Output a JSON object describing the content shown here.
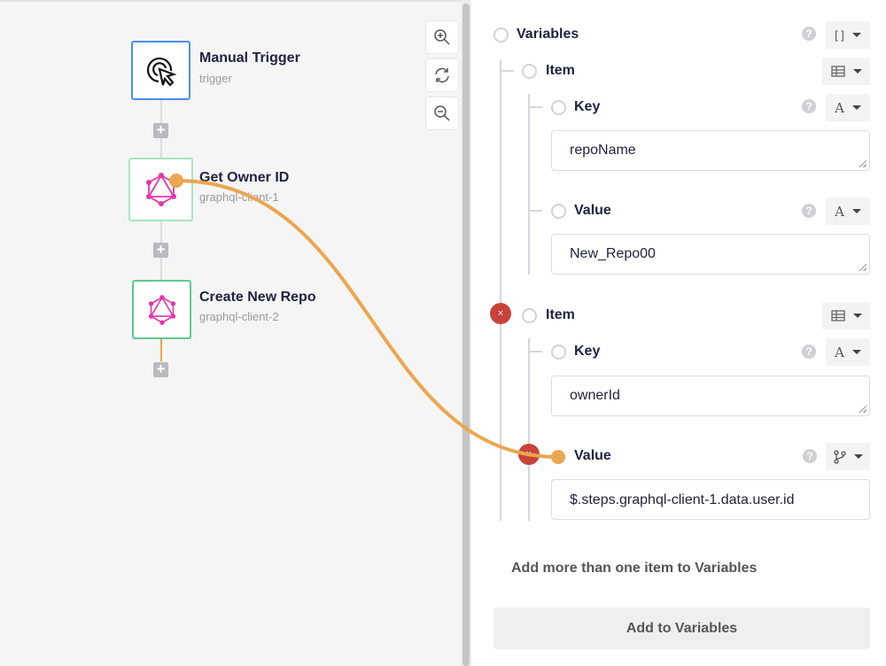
{
  "workflow": {
    "nodes": [
      {
        "title": "Manual Trigger",
        "subtitle": "trigger",
        "icon": "cursor-click-icon"
      },
      {
        "title": "Get Owner ID",
        "subtitle": "graphql-client-1",
        "icon": "graphql-icon"
      },
      {
        "title": "Create New Repo",
        "subtitle": "graphql-client-2",
        "icon": "graphql-icon"
      }
    ],
    "add_step_symbol": "+",
    "zoom_controls": [
      "zoom-in-icon",
      "refresh-icon",
      "zoom-out-icon"
    ]
  },
  "panel": {
    "variables_label": "Variables",
    "type_array_symbol": "[ ]",
    "help_symbol": "?",
    "remove_symbol": "×",
    "items": [
      {
        "label": "Item",
        "key_label": "Key",
        "key_value": "repoName",
        "value_label": "Value",
        "value_value": "New_Repo00",
        "value_type": "A"
      },
      {
        "label": "Item",
        "key_label": "Key",
        "key_value": "ownerId",
        "value_label": "Value",
        "value_value": "$.steps.graphql-client-1.data.user.id",
        "value_type": "reference"
      }
    ],
    "text_type_symbol": "A",
    "add_more_text": "Add more than one item to Variables",
    "add_button": "Add to Variables"
  },
  "colors": {
    "connector": "#eba64f",
    "node_border_active": "#5fc98e",
    "trigger_border": "#4a8ff0",
    "remove": "#c8423b",
    "graphql": "#e535ab"
  }
}
